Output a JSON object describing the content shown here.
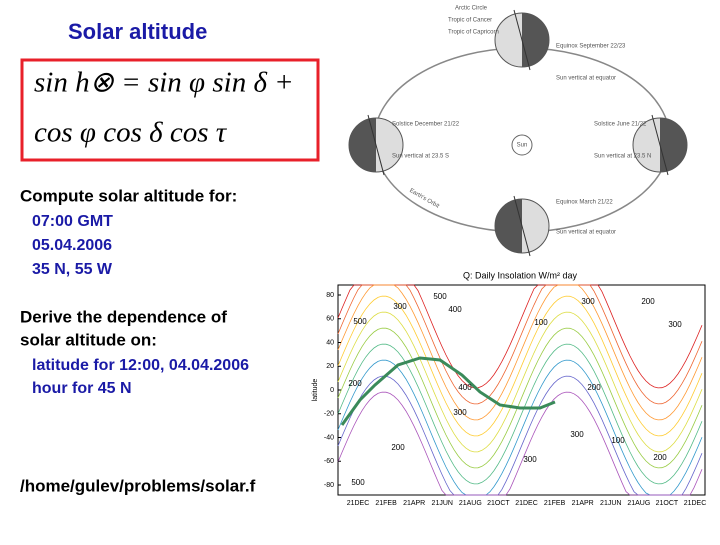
{
  "slide": {
    "title": "Solar altitude",
    "formula": {
      "line1": "sin h⊗ = sin φ sin δ +",
      "line2": "cos φ cos δ cos τ"
    },
    "task1": {
      "heading": "Compute solar altitude for:",
      "items": [
        "07:00 GMT",
        "05.04.2006",
        "35 N, 55 W"
      ]
    },
    "task2": {
      "heading": [
        "Derive the dependence of",
        "solar altitude on:"
      ],
      "items": [
        "latitude for 12:00, 04.04.2006",
        "hour for 45 N"
      ]
    },
    "path": "/home/gulev/problems/solar.f"
  },
  "diagram": {
    "labels": [
      "Arctic Circle",
      "Tropic of Cancer",
      "Tropic of Capricorn",
      "Equinox September 22/23",
      "Sun vertical at equator",
      "Solstice December 21/22",
      "Sun vertical at 23.5 S",
      "Sun",
      "Solstice June 21/22",
      "Sun vertical at 23.5 N",
      "Earth's Orbit",
      "Equinox March 21/22",
      "Sun vertical at equator"
    ]
  },
  "insolation": {
    "title": "Q: Daily Insolation W/m² day",
    "ylabel": "latitude",
    "yticks": [
      "80",
      "60",
      "40",
      "20",
      "0",
      "-20",
      "-40",
      "-60",
      "-80"
    ],
    "xticks": [
      "21DEC",
      "21FEB",
      "21APR",
      "21JUN",
      "21AUG",
      "21OCT",
      "21DEC",
      "21FEB",
      "21APR",
      "21JUN",
      "21AUG",
      "21OCT",
      "21DEC"
    ],
    "contour_labels": [
      "500",
      "300",
      "400",
      "500",
      "300",
      "200",
      "100",
      "300",
      "400",
      "300",
      "200",
      "200",
      "300",
      "100",
      "300",
      "200",
      "500",
      "200"
    ]
  }
}
